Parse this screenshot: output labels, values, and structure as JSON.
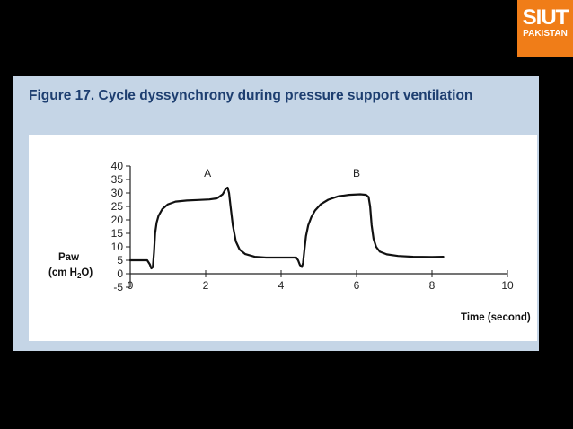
{
  "logo": {
    "main": "SIUT",
    "sub": "PAKISTAN",
    "color": "#f07d18"
  },
  "figure": {
    "title": "Figure 17. Cycle dyssynchrony during pressure support ventilation"
  },
  "chart_data": {
    "type": "line",
    "title": "Figure 17. Cycle dyssynchrony during pressure support ventilation",
    "ylabel": {
      "line1": "Paw",
      "line2_pre": "(cm H",
      "line2_sub": "2",
      "line2_post": "O)"
    },
    "xlabel": "Time (second)",
    "xlim": [
      0,
      10
    ],
    "ylim": [
      -5,
      40
    ],
    "xticks": [
      0,
      2,
      4,
      6,
      8,
      10
    ],
    "yticks": [
      -5,
      0,
      5,
      10,
      15,
      20,
      25,
      30,
      35,
      40
    ],
    "grid": false,
    "annotations": [
      {
        "text": "A",
        "x": 2.05,
        "y": 36
      },
      {
        "text": "B",
        "x": 6.0,
        "y": 36
      }
    ],
    "series": [
      {
        "color": "#111111",
        "points": [
          [
            0,
            5
          ],
          [
            0.45,
            5
          ],
          [
            0.52,
            3.5
          ],
          [
            0.56,
            2.0
          ],
          [
            0.6,
            2.5
          ],
          [
            0.63,
            8
          ],
          [
            0.66,
            15
          ],
          [
            0.7,
            19
          ],
          [
            0.75,
            21.5
          ],
          [
            0.85,
            24
          ],
          [
            1.0,
            25.8
          ],
          [
            1.2,
            26.8
          ],
          [
            1.5,
            27.2
          ],
          [
            1.8,
            27.4
          ],
          [
            2.1,
            27.6
          ],
          [
            2.3,
            28
          ],
          [
            2.45,
            29.5
          ],
          [
            2.53,
            31.5
          ],
          [
            2.58,
            32
          ],
          [
            2.62,
            30
          ],
          [
            2.66,
            25
          ],
          [
            2.72,
            18
          ],
          [
            2.8,
            12
          ],
          [
            2.9,
            9
          ],
          [
            3.05,
            7.3
          ],
          [
            3.3,
            6.3
          ],
          [
            3.6,
            6
          ],
          [
            4.0,
            6
          ],
          [
            4.4,
            6
          ],
          [
            4.45,
            5
          ],
          [
            4.5,
            3.2
          ],
          [
            4.55,
            2.5
          ],
          [
            4.58,
            4
          ],
          [
            4.62,
            9
          ],
          [
            4.66,
            14
          ],
          [
            4.72,
            18
          ],
          [
            4.8,
            21
          ],
          [
            4.9,
            23.5
          ],
          [
            5.05,
            25.8
          ],
          [
            5.25,
            27.5
          ],
          [
            5.5,
            28.7
          ],
          [
            5.8,
            29.3
          ],
          [
            6.1,
            29.5
          ],
          [
            6.25,
            29.3
          ],
          [
            6.32,
            28.5
          ],
          [
            6.36,
            25
          ],
          [
            6.4,
            18
          ],
          [
            6.45,
            13
          ],
          [
            6.52,
            10
          ],
          [
            6.62,
            8.2
          ],
          [
            6.8,
            7.2
          ],
          [
            7.1,
            6.6
          ],
          [
            7.5,
            6.3
          ],
          [
            8.0,
            6.2
          ],
          [
            8.3,
            6.3
          ]
        ]
      }
    ]
  }
}
